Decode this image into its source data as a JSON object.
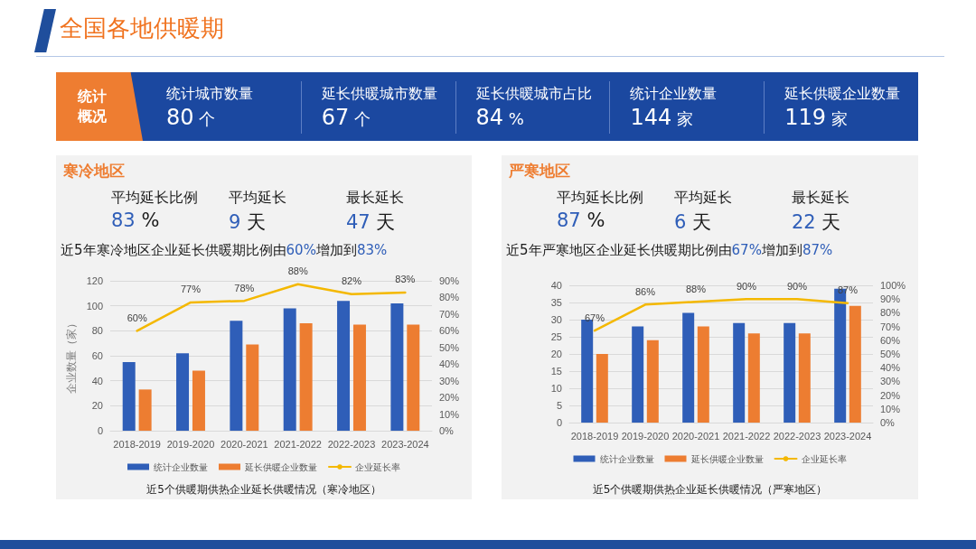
{
  "chart_data": [
    {
      "type": "other",
      "title": "全国各地供暖期",
      "subtitle": "统计概况",
      "annotations": [
        "统计城市数量",
        "80 个",
        "延长供暖城市数量",
        "67 个",
        "延长供暖城市占比",
        "84 %",
        "统计企业数量",
        "144 家",
        "延长供暖企业数量",
        "119 家"
      ]
    },
    {
      "type": "bar",
      "title": "寒冷地区",
      "subtitle": "近5年寒冷地区企业延长供暖期比例由60%增加到83%",
      "ylabel": "企业数量（家）",
      "categories": [
        "2018-2019",
        "2019-2020",
        "2020-2021",
        "2021-2022",
        "2022-2023",
        "2023-2024"
      ],
      "series": [
        {
          "name": "统计企业数量",
          "color": "#2f5eb8",
          "values": [
            55,
            62,
            88,
            98,
            104,
            102
          ]
        },
        {
          "name": "延长供暖企业数量",
          "color": "#ed7d31",
          "values": [
            33,
            48,
            69,
            86,
            85,
            85
          ]
        },
        {
          "name": "企业延长率",
          "type": "line",
          "axis": "y2",
          "color": "#f4b800",
          "values": [
            60,
            77,
            78,
            88,
            82,
            83
          ],
          "value_labels": [
            "60%",
            "77%",
            "78%",
            "88%",
            "82%",
            "83%"
          ]
        }
      ],
      "ylim": [
        0,
        120
      ],
      "yticks": [
        0,
        20,
        40,
        60,
        80,
        100,
        120
      ],
      "y2lim": [
        0,
        90
      ],
      "y2ticks": [
        {
          "value": 0,
          "label": "0%"
        },
        {
          "value": 10,
          "label": "10%"
        },
        {
          "value": 20,
          "label": "20%"
        },
        {
          "value": 30,
          "label": "30%"
        },
        {
          "value": 40,
          "label": "40%"
        },
        {
          "value": 50,
          "label": "50%"
        },
        {
          "value": 60,
          "label": "60%"
        },
        {
          "value": 70,
          "label": "70%"
        },
        {
          "value": 80,
          "label": "80%"
        },
        {
          "value": 90,
          "label": "90%"
        }
      ],
      "grid": "y",
      "legend": "bottom",
      "marker": "none",
      "line_style": "solid",
      "annotations": [
        "平均延长比例",
        "83 %",
        "平均延长",
        "9 天",
        "最长延长",
        "47 天",
        "近5个供暖期供热企业延长供暖情况（寒冷地区）"
      ]
    },
    {
      "type": "bar",
      "title": "严寒地区",
      "subtitle": "近5年严寒地区企业延长供暖期比例由67%增加到87%",
      "categories": [
        "2018-2019",
        "2019-2020",
        "2020-2021",
        "2021-2022",
        "2022-2023",
        "2023-2024"
      ],
      "series": [
        {
          "name": "统计企业数量",
          "color": "#2f5eb8",
          "values": [
            30,
            28,
            32,
            29,
            29,
            39
          ]
        },
        {
          "name": "延长供暖企业数量",
          "color": "#ed7d31",
          "values": [
            20,
            24,
            28,
            26,
            26,
            34
          ]
        },
        {
          "name": "企业延长率",
          "type": "line",
          "axis": "y2",
          "color": "#f4b800",
          "values": [
            67,
            86,
            88,
            90,
            90,
            87
          ],
          "value_labels": [
            "67%",
            "86%",
            "88%",
            "90%",
            "90%",
            "87%"
          ]
        }
      ],
      "ylim": [
        0,
        40
      ],
      "yticks": [
        0,
        5,
        10,
        15,
        20,
        25,
        30,
        35,
        40
      ],
      "y2lim": [
        0,
        100
      ],
      "y2ticks": [
        {
          "value": 0,
          "label": "0%"
        },
        {
          "value": 10,
          "label": "10%"
        },
        {
          "value": 20,
          "label": "20%"
        },
        {
          "value": 30,
          "label": "30%"
        },
        {
          "value": 40,
          "label": "40%"
        },
        {
          "value": 50,
          "label": "50%"
        },
        {
          "value": 60,
          "label": "60%"
        },
        {
          "value": 70,
          "label": "70%"
        },
        {
          "value": 80,
          "label": "80%"
        },
        {
          "value": 90,
          "label": "90%"
        },
        {
          "value": 100,
          "label": "100%"
        }
      ],
      "grid": "y",
      "legend": "bottom",
      "marker": "none",
      "line_style": "solid",
      "annotations": [
        "平均延长比例",
        "87 %",
        "平均延长",
        "6 天",
        "最长延长",
        "22 天",
        "近5个供暖期供热企业延长供暖情况（严寒地区）"
      ]
    }
  ]
}
